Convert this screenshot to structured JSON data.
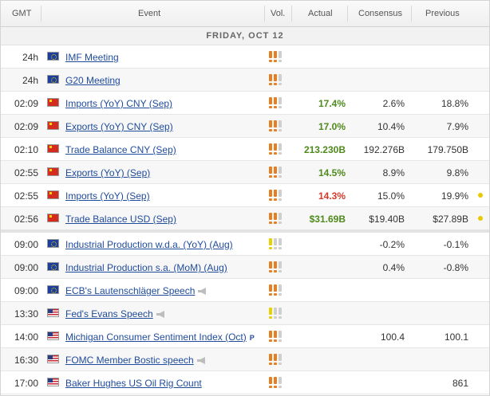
{
  "header": {
    "gmt": "GMT",
    "event": "Event",
    "vol": "Vol.",
    "actual": "Actual",
    "consensus": "Consensus",
    "previous": "Previous"
  },
  "day_label": "FRIDAY, OCT 12",
  "colors": {
    "actual_green": "#4e8a1c",
    "actual_red": "#d43a2a",
    "vol_high": "#e67e22",
    "vol_medium": "#e7d200",
    "link": "#1f4b9b"
  },
  "events": [
    {
      "time": "24h",
      "flag": "eu-flag-icon",
      "name": "IMF Meeting",
      "vol": "high",
      "actual": "",
      "consensus": "",
      "previous": ""
    },
    {
      "time": "24h",
      "flag": "eu-flag-icon",
      "name": "G20 Meeting",
      "vol": "high",
      "actual": "",
      "consensus": "",
      "previous": ""
    },
    {
      "time": "02:09",
      "flag": "china-flag-icon",
      "name": "Imports (YoY) CNY (Sep)",
      "vol": "high",
      "actual": "17.4%",
      "actual_color": "green",
      "consensus": "2.6%",
      "previous": "18.8%"
    },
    {
      "time": "02:09",
      "flag": "china-flag-icon",
      "name": "Exports (YoY) CNY (Sep)",
      "vol": "high",
      "actual": "17.0%",
      "actual_color": "green",
      "consensus": "10.4%",
      "previous": "7.9%"
    },
    {
      "time": "02:10",
      "flag": "china-flag-icon",
      "name": "Trade Balance CNY (Sep)",
      "vol": "high",
      "actual": "213.230B",
      "actual_color": "green",
      "consensus": "192.276B",
      "previous": "179.750B"
    },
    {
      "time": "02:55",
      "flag": "china-flag-icon",
      "name": "Exports (YoY) (Sep)",
      "vol": "high",
      "actual": "14.5%",
      "actual_color": "green",
      "consensus": "8.9%",
      "previous": "9.8%"
    },
    {
      "time": "02:55",
      "flag": "china-flag-icon",
      "name": "Imports (YoY) (Sep)",
      "vol": "high",
      "actual": "14.3%",
      "actual_color": "red",
      "consensus": "15.0%",
      "previous": "19.9%",
      "revised": true
    },
    {
      "time": "02:56",
      "flag": "china-flag-icon",
      "name": "Trade Balance USD (Sep)",
      "vol": "high",
      "actual": "$31.69B",
      "actual_color": "green",
      "consensus": "$19.40B",
      "previous": "$27.89B",
      "revised": true
    },
    {
      "time": "09:00",
      "flag": "eu-flag-icon",
      "name": "Industrial Production w.d.a. (YoY) (Aug)",
      "vol": "medium",
      "actual": "",
      "consensus": "-0.2%",
      "previous": "-0.1%"
    },
    {
      "time": "09:00",
      "flag": "eu-flag-icon",
      "name": "Industrial Production s.a. (MoM) (Aug)",
      "vol": "high",
      "actual": "",
      "consensus": "0.4%",
      "previous": "-0.8%"
    },
    {
      "time": "09:00",
      "flag": "eu-flag-icon",
      "name": "ECB's Lautenschläger Speech",
      "vol": "high",
      "speech": true,
      "actual": "",
      "consensus": "",
      "previous": ""
    },
    {
      "time": "13:30",
      "flag": "us-flag-icon",
      "name": "Fed's Evans Speech",
      "vol": "medium",
      "speech": true,
      "actual": "",
      "consensus": "",
      "previous": ""
    },
    {
      "time": "14:00",
      "flag": "us-flag-icon",
      "name": "Michigan Consumer Sentiment Index (Oct)",
      "vol": "high",
      "badge": "P",
      "actual": "",
      "consensus": "100.4",
      "previous": "100.1"
    },
    {
      "time": "16:30",
      "flag": "us-flag-icon",
      "name": "FOMC Member Bostic speech",
      "vol": "high",
      "speech": true,
      "actual": "",
      "consensus": "",
      "previous": ""
    },
    {
      "time": "17:00",
      "flag": "us-flag-icon",
      "name": "Baker Hughes US Oil Rig Count",
      "vol": "high",
      "actual": "",
      "consensus": "",
      "previous": "861"
    }
  ]
}
